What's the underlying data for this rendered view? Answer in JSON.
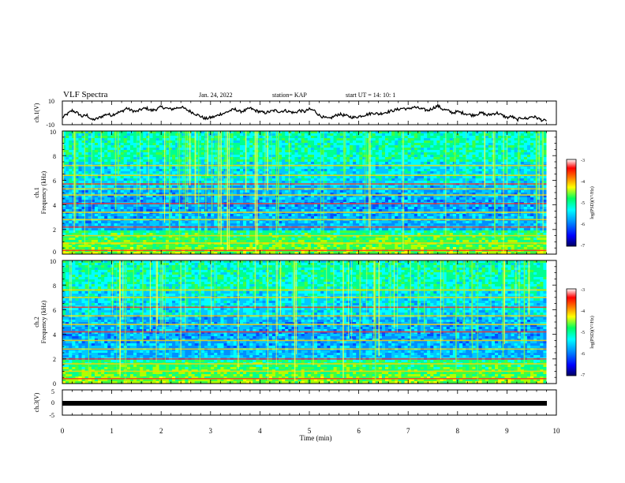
{
  "header": {
    "title": "VLF Spectra",
    "date": "Jan. 24, 2022",
    "station": "station= KAP",
    "start": "start UT =  14: 10: 1"
  },
  "colors": {
    "frame": "#000000",
    "colormap": [
      "#000080",
      "#0000ff",
      "#0080ff",
      "#00ffff",
      "#00ff80",
      "#80ff00",
      "#ffff00",
      "#ff8000",
      "#ff0000",
      "#ffffff"
    ]
  },
  "chart_data": [
    {
      "type": "line",
      "ylabel": "ch.1(V)",
      "ylim": [
        -10,
        10
      ],
      "yticks": [
        "10",
        "-10"
      ],
      "xlim": [
        0,
        10
      ],
      "x": [
        0,
        0.1,
        0.2,
        0.3,
        0.4,
        0.5,
        0.6,
        0.7,
        0.8,
        0.9,
        1.0,
        1.1,
        1.2,
        1.3,
        1.4,
        1.5,
        1.6,
        1.7,
        1.8,
        1.9,
        2.0,
        2.1,
        2.2,
        2.3,
        2.4,
        2.5,
        2.6,
        2.7,
        2.8,
        2.9,
        3.0,
        3.1,
        3.2,
        3.3,
        3.4,
        3.5,
        3.6,
        3.7,
        3.8,
        3.9,
        4.0,
        4.1,
        4.2,
        4.3,
        4.4,
        4.5,
        4.6,
        4.7,
        4.8,
        4.9,
        5.0,
        5.1,
        5.2,
        5.3,
        5.4,
        5.5,
        5.6,
        5.7,
        5.8,
        5.9,
        6.0,
        6.1,
        6.2,
        6.3,
        6.4,
        6.5,
        6.6,
        6.7,
        6.8,
        6.9,
        7.0,
        7.1,
        7.2,
        7.3,
        7.4,
        7.5,
        7.6,
        7.7,
        7.8,
        7.9,
        8.0,
        8.1,
        8.2,
        8.3,
        8.4,
        8.5,
        8.6,
        8.7,
        8.8,
        8.9,
        9.0,
        9.1,
        9.2,
        9.3,
        9.4,
        9.5,
        9.6,
        9.7,
        9.8
      ],
      "values": [
        -4,
        -1,
        2,
        0,
        -3,
        -2,
        -6,
        -5,
        -3,
        -1,
        -2,
        0,
        1,
        4,
        2,
        1,
        3,
        4,
        2,
        3,
        5,
        4,
        3,
        4,
        5,
        3,
        1,
        -1,
        -3,
        -5,
        -4,
        -3,
        -1,
        0,
        2,
        3,
        1,
        2,
        4,
        2,
        1,
        0,
        1,
        2,
        1,
        2,
        1,
        0,
        2,
        1,
        3,
        2,
        -2,
        -4,
        -5,
        -3,
        -1,
        -2,
        -3,
        -4,
        -3,
        -2,
        -1,
        0,
        -1,
        0,
        1,
        2,
        3,
        4,
        3,
        5,
        4,
        3,
        2,
        4,
        6,
        3,
        2,
        0,
        1,
        0,
        -1,
        -2,
        -1,
        0,
        -2,
        -1,
        0,
        -2,
        -4,
        -3,
        -6,
        -4,
        -5,
        -3,
        -4,
        -6,
        -7
      ]
    },
    {
      "type": "heatmap",
      "ylabel": "ch.1",
      "ylabel2": "Frequency (kHz)",
      "ylim": [
        0,
        10
      ],
      "yticks": [
        "0",
        "2",
        "4",
        "6",
        "8",
        "10"
      ],
      "xlim": [
        0,
        9.8
      ],
      "colorbar": {
        "label": "log(PSD)(V²/Hz)",
        "range": [
          -7,
          -3
        ],
        "ticks": [
          "-3",
          "-4",
          "-5",
          "-6",
          "-7"
        ]
      },
      "bands_khz": [
        0.3,
        0.9,
        1.5,
        2.2,
        2.8,
        3.4,
        4.1,
        4.8,
        5.3,
        5.7,
        6.4,
        7.2
      ]
    },
    {
      "type": "heatmap",
      "ylabel": "ch.2",
      "ylabel2": "Frequency (kHz)",
      "ylim": [
        0,
        10
      ],
      "yticks": [
        "0",
        "2",
        "4",
        "6",
        "8",
        "10"
      ],
      "xlim": [
        0,
        9.8
      ],
      "colorbar": {
        "label": "log(PSD)(V²/Hz)",
        "range": [
          -7,
          -3
        ],
        "ticks": [
          "-3",
          "-4",
          "-5",
          "-6",
          "-7"
        ]
      },
      "bands_khz": [
        0.4,
        1.0,
        1.6,
        2.0,
        2.8,
        3.5,
        4.2,
        4.8,
        5.5,
        6.2,
        7.0,
        7.6
      ]
    },
    {
      "type": "line",
      "ylabel": "ch.3(V)",
      "ylim": [
        -5,
        5
      ],
      "yticks": [
        "5",
        "0",
        "-5"
      ],
      "xlim": [
        0,
        10
      ],
      "x": [
        0,
        9.8
      ],
      "values": [
        0,
        0
      ],
      "xlabel": "Time (min)",
      "xticks": [
        "0",
        "1",
        "2",
        "3",
        "4",
        "5",
        "6",
        "7",
        "8",
        "9",
        "10"
      ]
    }
  ]
}
